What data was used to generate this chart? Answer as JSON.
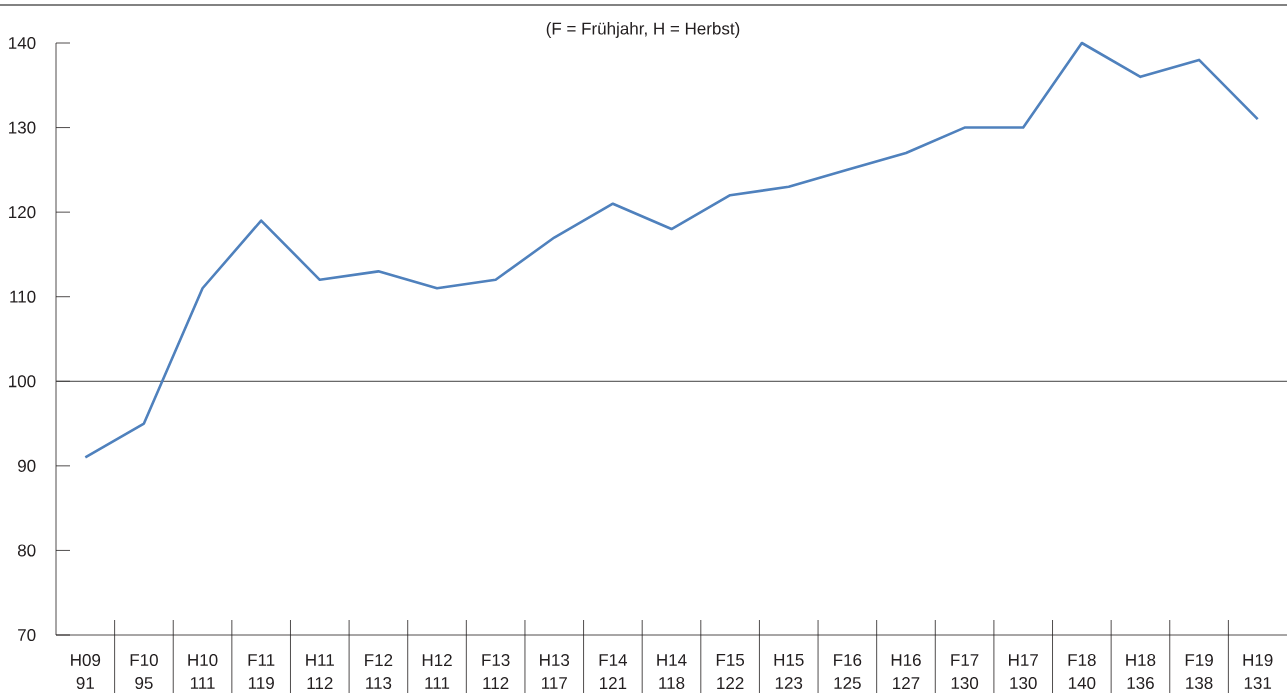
{
  "chart_data": {
    "type": "line",
    "subtitle": "(F = Frühjahr, H = Herbst)",
    "categories": [
      "H09",
      "F10",
      "H10",
      "F11",
      "H11",
      "F12",
      "H12",
      "F13",
      "H13",
      "F14",
      "H14",
      "F15",
      "H15",
      "F16",
      "H16",
      "F17",
      "H17",
      "F18",
      "H18",
      "F19",
      "H19"
    ],
    "values": [
      91,
      95,
      111,
      119,
      112,
      113,
      111,
      112,
      117,
      121,
      118,
      122,
      123,
      125,
      127,
      130,
      130,
      140,
      136,
      138,
      131
    ],
    "color": "#4f81bd",
    "marker": "none",
    "data_labels": true,
    "ylim": [
      70,
      140
    ],
    "yticks": [
      70,
      80,
      90,
      100,
      110,
      120,
      130,
      140
    ],
    "ref_lines": [
      {
        "axis": "y",
        "value": 100,
        "color": "#404040"
      }
    ]
  }
}
